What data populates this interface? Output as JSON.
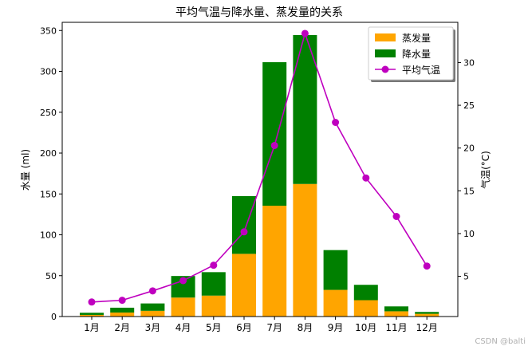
{
  "chart_data": {
    "type": "bar",
    "title": "平均气温与降水量、蒸发量的关系",
    "categories": [
      "1月",
      "2月",
      "3月",
      "4月",
      "5月",
      "6月",
      "7月",
      "8月",
      "9月",
      "10月",
      "11月",
      "12月"
    ],
    "ylabel": "水量 (ml)",
    "y2label": "气温(°C)",
    "ylim": [
      0,
      360
    ],
    "y2lim": [
      0.3,
      34.7
    ],
    "yticks": [
      0,
      50,
      100,
      150,
      200,
      250,
      300,
      350
    ],
    "y2ticks": [
      5,
      10,
      15,
      20,
      25,
      30
    ],
    "stacked": true,
    "series": [
      {
        "name": "蒸发量",
        "type": "bar",
        "axis": "left",
        "color": "#ffa500",
        "values": [
          2.0,
          4.9,
          7.0,
          23.2,
          25.6,
          76.7,
          135.6,
          162.2,
          32.6,
          20.0,
          6.4,
          3.3
        ]
      },
      {
        "name": "降水量",
        "type": "bar",
        "axis": "left",
        "color": "#008000",
        "values": [
          2.6,
          5.9,
          9.0,
          26.4,
          28.7,
          70.7,
          175.6,
          182.2,
          48.7,
          18.8,
          6.0,
          2.3
        ]
      },
      {
        "name": "平均气温",
        "type": "line",
        "axis": "right",
        "color": "#bf00bf",
        "values": [
          2.0,
          2.2,
          3.3,
          4.5,
          6.3,
          10.2,
          20.3,
          33.4,
          23.0,
          16.5,
          12.0,
          6.2
        ]
      }
    ],
    "legend_position": "top-right",
    "grid": false
  },
  "watermark": "CSDN @balti"
}
